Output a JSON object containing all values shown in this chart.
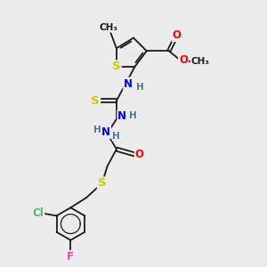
{
  "bg_color": "#ececec",
  "bond_color": "#1a1a1a",
  "atom_colors": {
    "S": "#cccc00",
    "O": "#ff0000",
    "N": "#0000ff",
    "Cl": "#55bb55",
    "F": "#ff44aa",
    "C": "#1a1a1a",
    "H": "#4a7a8a"
  },
  "font_size": 7.5,
  "bond_width": 1.3
}
